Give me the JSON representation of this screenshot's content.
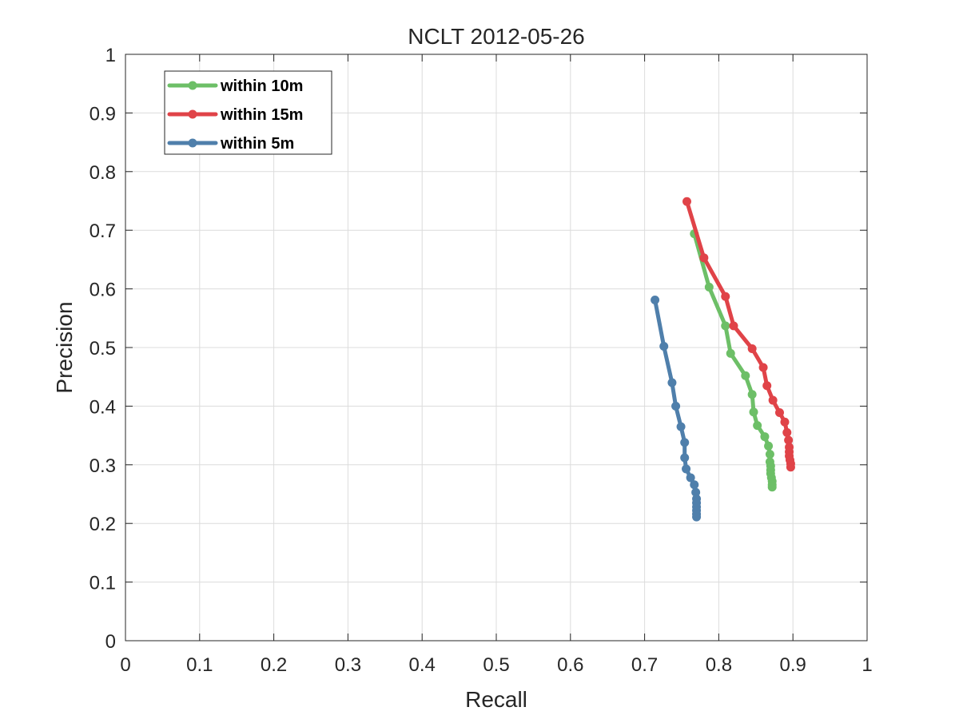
{
  "chart_data": {
    "type": "line",
    "title": "NCLT 2012-05-26",
    "xlabel": "Recall",
    "ylabel": "Precision",
    "xlim": [
      0,
      1
    ],
    "ylim": [
      0,
      1
    ],
    "xticks": [
      "0",
      "0.1",
      "0.2",
      "0.3",
      "0.4",
      "0.5",
      "0.6",
      "0.7",
      "0.8",
      "0.9",
      "1"
    ],
    "yticks": [
      "0",
      "0.1",
      "0.2",
      "0.3",
      "0.4",
      "0.5",
      "0.6",
      "0.7",
      "0.8",
      "0.9",
      "1"
    ],
    "grid": true,
    "legend_position": "top-left",
    "series": [
      {
        "name": "within 10m",
        "color": "#6dbf67",
        "points": [
          [
            0.767,
            0.694
          ],
          [
            0.787,
            0.603
          ],
          [
            0.809,
            0.537
          ],
          [
            0.816,
            0.49
          ],
          [
            0.836,
            0.452
          ],
          [
            0.845,
            0.42
          ],
          [
            0.847,
            0.39
          ],
          [
            0.852,
            0.367
          ],
          [
            0.862,
            0.348
          ],
          [
            0.867,
            0.332
          ],
          [
            0.869,
            0.318
          ],
          [
            0.869,
            0.305
          ],
          [
            0.87,
            0.298
          ],
          [
            0.87,
            0.291
          ],
          [
            0.87,
            0.285
          ],
          [
            0.871,
            0.278
          ],
          [
            0.872,
            0.272
          ],
          [
            0.872,
            0.266
          ],
          [
            0.872,
            0.262
          ]
        ]
      },
      {
        "name": "within 15m",
        "color": "#e04348",
        "points": [
          [
            0.757,
            0.749
          ],
          [
            0.78,
            0.653
          ],
          [
            0.809,
            0.587
          ],
          [
            0.82,
            0.537
          ],
          [
            0.845,
            0.498
          ],
          [
            0.86,
            0.466
          ],
          [
            0.865,
            0.435
          ],
          [
            0.873,
            0.41
          ],
          [
            0.882,
            0.389
          ],
          [
            0.889,
            0.373
          ],
          [
            0.892,
            0.355
          ],
          [
            0.894,
            0.342
          ],
          [
            0.895,
            0.33
          ],
          [
            0.895,
            0.322
          ],
          [
            0.895,
            0.315
          ],
          [
            0.896,
            0.308
          ],
          [
            0.897,
            0.302
          ],
          [
            0.897,
            0.296
          ]
        ]
      },
      {
        "name": "within 5m",
        "color": "#4f7fab",
        "points": [
          [
            0.714,
            0.581
          ],
          [
            0.726,
            0.502
          ],
          [
            0.737,
            0.44
          ],
          [
            0.742,
            0.4
          ],
          [
            0.749,
            0.365
          ],
          [
            0.754,
            0.338
          ],
          [
            0.754,
            0.312
          ],
          [
            0.756,
            0.293
          ],
          [
            0.762,
            0.278
          ],
          [
            0.767,
            0.266
          ],
          [
            0.769,
            0.253
          ],
          [
            0.77,
            0.242
          ],
          [
            0.77,
            0.235
          ],
          [
            0.77,
            0.228
          ],
          [
            0.77,
            0.222
          ],
          [
            0.77,
            0.216
          ],
          [
            0.77,
            0.211
          ]
        ]
      }
    ]
  }
}
